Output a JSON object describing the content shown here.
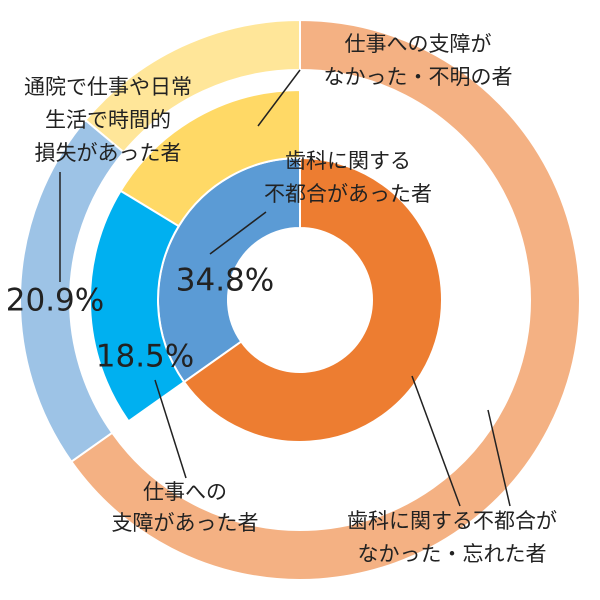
{
  "chart_data": {
    "type": "nested-donut",
    "rings": [
      {
        "values": [
          34.8,
          65.2
        ],
        "colors": [
          "#5b9bd5",
          "#ed7d31"
        ],
        "value_labels": [
          "34.8%",
          null
        ]
      },
      {
        "values": [
          16.3,
          18.5
        ],
        "colors": [
          "#ffd966",
          "#00b0f0"
        ],
        "value_labels": [
          null,
          "18.5%"
        ]
      },
      {
        "values": [
          13.9,
          20.9,
          65.2
        ],
        "colors": [
          "#ffe699",
          "#9dc3e6",
          "#f4b183"
        ],
        "value_labels": [
          null,
          "20.9%",
          null
        ]
      }
    ],
    "annotations": [
      {
        "lines": [
          "仕事への支障が",
          "なかった・不明の者"
        ]
      },
      {
        "lines": [
          "通院で仕事や日常",
          "生活で時間的",
          "損失があった者"
        ]
      },
      {
        "lines": [
          "歯科に関する",
          "不都合があった者"
        ]
      },
      {
        "lines": [
          "仕事への",
          "支障があった者"
        ]
      },
      {
        "lines": [
          "歯科に関する不都合が",
          "なかった・忘れた者"
        ]
      }
    ]
  }
}
